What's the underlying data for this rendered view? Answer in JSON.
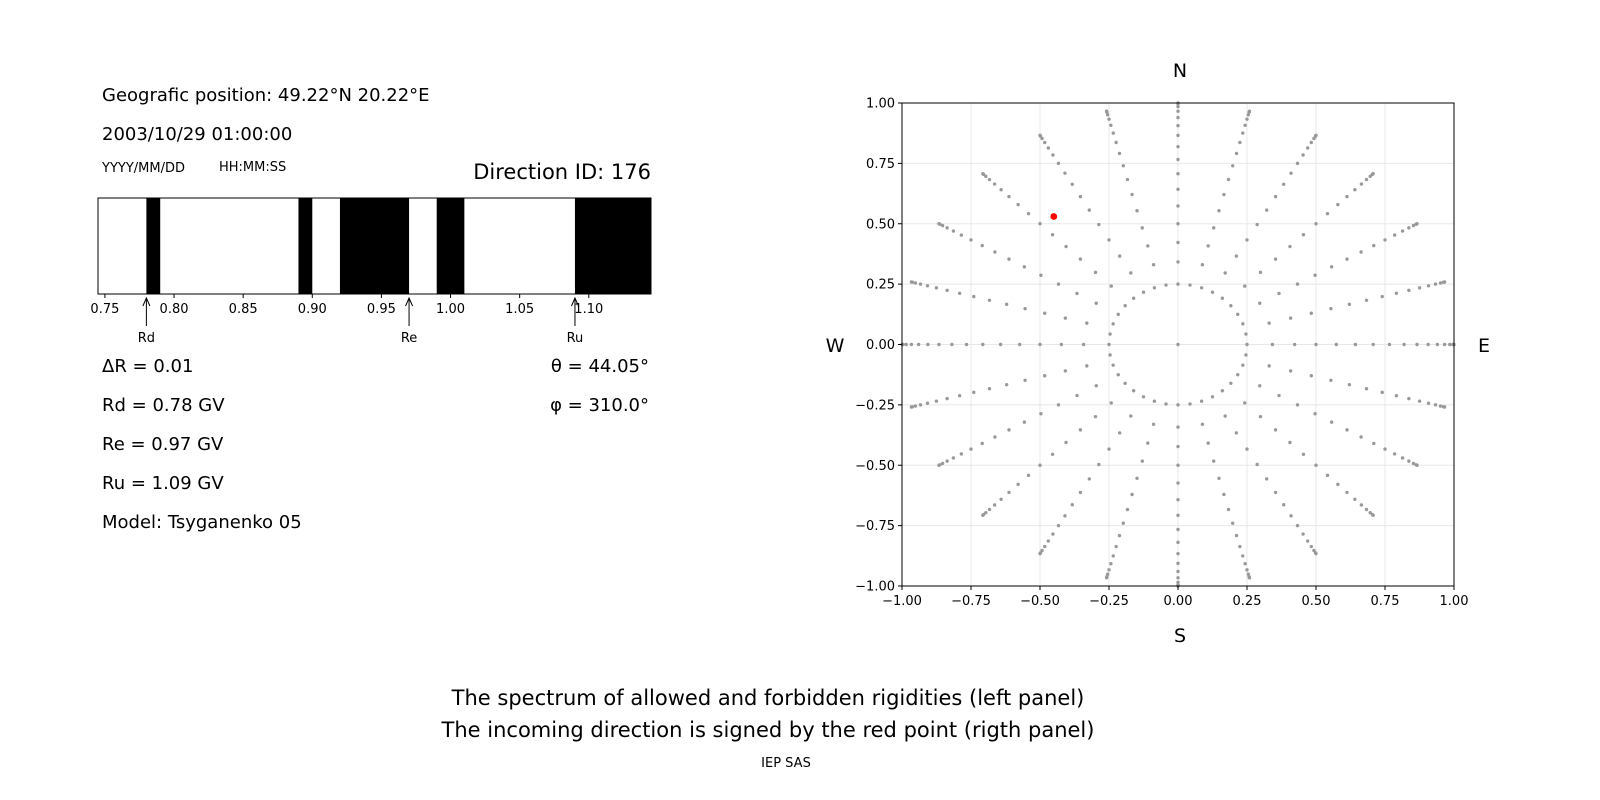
{
  "header": {
    "position": "Geografic position: 49.22°N 20.22°E",
    "datetime": "2003/10/29 01:00:00",
    "date_hint": "YYYY/MM/DD",
    "time_hint": "HH:MM:SS",
    "direction_id": "Direction ID: 176"
  },
  "params": {
    "delta_r": "ΔR = 0.01",
    "rd": "Rd = 0.78 GV",
    "re": "Re = 0.97 GV",
    "ru": "Ru = 1.09 GV",
    "model": "Model: Tsyganenko 05",
    "theta": "θ = 44.05°",
    "phi": "φ = 310.0°"
  },
  "compass": {
    "n": "N",
    "s": "S",
    "w": "W",
    "e": "E"
  },
  "footer": {
    "line1": "The spectrum of allowed and forbidden rigidities (left panel)",
    "line2": "The incoming direction is signed by the red point (rigth panel)",
    "credit": "IEP SAS"
  },
  "chart_data": [
    {
      "type": "bar",
      "description_type": "rigidity spectrum (black = forbidden, white = allowed)",
      "xlim": [
        0.745,
        1.145
      ],
      "ticks": [
        0.75,
        0.8,
        0.85,
        0.9,
        0.95,
        1.0,
        1.05,
        1.1
      ],
      "tick_labels": [
        "0.75",
        "0.80",
        "0.85",
        "0.90",
        "0.95",
        "1.00",
        "1.05",
        "1.10"
      ],
      "forbidden_bands": [
        [
          0.78,
          0.79
        ],
        [
          0.89,
          0.9
        ],
        [
          0.92,
          0.97
        ],
        [
          0.99,
          1.01
        ],
        [
          1.09,
          1.145
        ]
      ],
      "markers": [
        {
          "label": "Rd",
          "value": 0.78
        },
        {
          "label": "Re",
          "value": 0.97
        },
        {
          "label": "Ru",
          "value": 1.09
        }
      ],
      "colors": {
        "forbidden": "#000000",
        "allowed": "#ffffff"
      }
    },
    {
      "type": "scatter",
      "xlim": [
        -1.0,
        1.0
      ],
      "ylim": [
        -1.0,
        1.0
      ],
      "ticks": [
        -1.0,
        -0.75,
        -0.5,
        -0.25,
        0.0,
        0.25,
        0.5,
        0.75,
        1.0
      ],
      "xtick_labels": [
        "−1.00",
        "−0.75",
        "−0.50",
        "−0.25",
        "0.00",
        "0.25",
        "0.50",
        "0.75",
        "1.00"
      ],
      "ytick_labels": [
        "−1.00",
        "−0.75",
        "−0.50",
        "−0.25",
        "0.00",
        "0.25",
        "0.50",
        "0.75",
        "1.00"
      ],
      "grid": true,
      "grid_points": {
        "description": "directions in zenith angle (5° to 90°, step 5°) and azimuth (step 15°) projected as sin(zenith)",
        "zenith_deg_start": 5,
        "zenith_deg_end": 90,
        "zenith_deg_step": 5,
        "azimuth_deg_step": 15,
        "inner_ring_radius": 0.25,
        "inner_ring_azimuth_step_deg": 10,
        "include_center": true,
        "color": "#999999"
      },
      "highlight_point": {
        "x": -0.45,
        "y": 0.53,
        "color": "#ff0000"
      }
    }
  ]
}
